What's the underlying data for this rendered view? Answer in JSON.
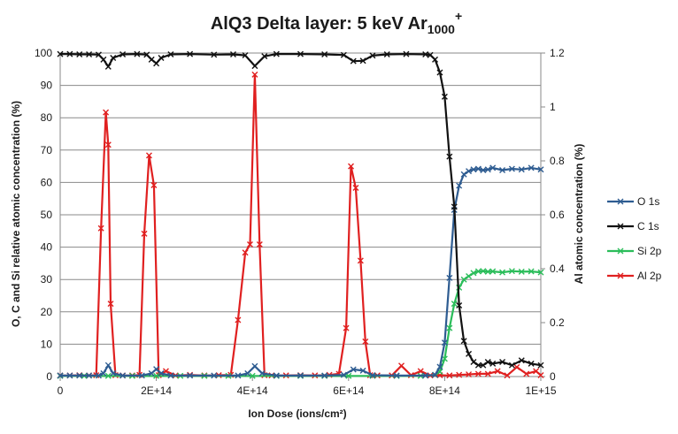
{
  "chart_data": {
    "type": "line",
    "title": {
      "main": "AlQ3 Delta layer: 5 keV Ar",
      "sub": "1000",
      "sup": "+"
    },
    "xlabel": "Ion Dose (ions/cm²)",
    "ylabel": "O, C and Si relative atomic concentration (%)",
    "y2label": "Al atomic concentration (%)",
    "xlim": [
      0,
      1000000000000000.0
    ],
    "ylim": [
      0,
      100
    ],
    "y2lim": [
      0,
      1.2
    ],
    "x_ticks": [
      "0",
      "2E+14",
      "4E+14",
      "6E+14",
      "8E+14",
      "1E+15"
    ],
    "y_ticks": [
      "0",
      "10",
      "20",
      "30",
      "40",
      "50",
      "60",
      "70",
      "80",
      "90",
      "100"
    ],
    "y2_ticks": [
      "0",
      "0.2",
      "0.4",
      "0.6",
      "0.8",
      "1",
      "1.2"
    ],
    "grid": "horizontal",
    "legend_position": "right",
    "series": [
      {
        "name": "O 1s",
        "axis": "left",
        "color": "#2e5c91",
        "x": [
          0,
          20000000000000.0,
          40000000000000.0,
          60000000000000.0,
          80000000000000.0,
          90000000000000.0,
          100000000000000.0,
          110000000000000.0,
          130000000000000.0,
          170000000000000.0,
          190000000000000.0,
          200000000000000.0,
          210000000000000.0,
          230000000000000.0,
          270000000000000.0,
          320000000000000.0,
          370000000000000.0,
          390000000000000.0,
          405000000000000.0,
          420000000000000.0,
          450000000000000.0,
          500000000000000.0,
          550000000000000.0,
          590000000000000.0,
          610000000000000.0,
          630000000000000.0,
          650000000000000.0,
          700000000000000.0,
          760000000000000.0,
          780000000000000.0,
          790000000000000.0,
          800000000000000.0,
          810000000000000.0,
          820000000000000.0,
          830000000000000.0,
          840000000000000.0,
          850000000000000.0,
          860000000000000.0,
          870000000000000.0,
          880000000000000.0,
          890000000000000.0,
          900000000000000.0,
          920000000000000.0,
          940000000000000.0,
          960000000000000.0,
          980000000000000.0,
          1000000000000000.0
        ],
        "values": [
          0.3,
          0.3,
          0.3,
          0.3,
          0.3,
          1.0,
          3.5,
          1.0,
          0.3,
          0.3,
          1.0,
          2.3,
          1.0,
          0.3,
          0.3,
          0.3,
          0.3,
          1.0,
          3.2,
          1.0,
          0.3,
          0.3,
          0.3,
          0.5,
          2.2,
          1.8,
          0.4,
          0.3,
          0.3,
          0.5,
          3.0,
          10.5,
          30.5,
          51.5,
          59.0,
          62.5,
          63.5,
          64.0,
          64.2,
          63.8,
          64.0,
          64.5,
          63.8,
          64.2,
          64.0,
          64.5,
          64.0
        ]
      },
      {
        "name": "C 1s",
        "axis": "left",
        "color": "#111111",
        "x": [
          0,
          20000000000000.0,
          40000000000000.0,
          60000000000000.0,
          80000000000000.0,
          90000000000000.0,
          100000000000000.0,
          110000000000000.0,
          130000000000000.0,
          160000000000000.0,
          180000000000000.0,
          190000000000000.0,
          200000000000000.0,
          210000000000000.0,
          230000000000000.0,
          270000000000000.0,
          320000000000000.0,
          360000000000000.0,
          385000000000000.0,
          405000000000000.0,
          425000000000000.0,
          450000000000000.0,
          500000000000000.0,
          550000000000000.0,
          590000000000000.0,
          610000000000000.0,
          630000000000000.0,
          650000000000000.0,
          680000000000000.0,
          720000000000000.0,
          760000000000000.0,
          770000000000000.0,
          780000000000000.0,
          790000000000000.0,
          800000000000000.0,
          810000000000000.0,
          820000000000000.0,
          830000000000000.0,
          840000000000000.0,
          850000000000000.0,
          860000000000000.0,
          870000000000000.0,
          880000000000000.0,
          890000000000000.0,
          900000000000000.0,
          920000000000000.0,
          940000000000000.0,
          960000000000000.0,
          980000000000000.0,
          1000000000000000.0
        ],
        "values": [
          99.7,
          99.7,
          99.6,
          99.6,
          99.5,
          98.0,
          95.8,
          98.5,
          99.6,
          99.7,
          99.5,
          98.0,
          96.8,
          98.5,
          99.6,
          99.7,
          99.5,
          99.6,
          99.3,
          96.0,
          99.0,
          99.7,
          99.7,
          99.6,
          99.4,
          97.5,
          97.6,
          99.2,
          99.6,
          99.7,
          99.6,
          99.4,
          98.0,
          94.0,
          86.5,
          68.0,
          52.5,
          22.0,
          11.0,
          7.0,
          4.5,
          3.5,
          3.5,
          4.5,
          4.0,
          4.5,
          3.5,
          5.0,
          4.0,
          3.5
        ]
      },
      {
        "name": "Si 2p",
        "axis": "left",
        "color": "#2bbd5a",
        "x": [
          0,
          50000000000000.0,
          100000000000000.0,
          150000000000000.0,
          200000000000000.0,
          250000000000000.0,
          300000000000000.0,
          350000000000000.0,
          400000000000000.0,
          450000000000000.0,
          500000000000000.0,
          550000000000000.0,
          600000000000000.0,
          650000000000000.0,
          700000000000000.0,
          750000000000000.0,
          780000000000000.0,
          790000000000000.0,
          800000000000000.0,
          810000000000000.0,
          820000000000000.0,
          830000000000000.0,
          840000000000000.0,
          850000000000000.0,
          860000000000000.0,
          870000000000000.0,
          880000000000000.0,
          890000000000000.0,
          900000000000000.0,
          920000000000000.0,
          940000000000000.0,
          960000000000000.0,
          980000000000000.0,
          1000000000000000.0
        ],
        "values": [
          0.2,
          0.2,
          0.2,
          0.2,
          0.2,
          0.2,
          0.2,
          0.2,
          0.2,
          0.2,
          0.2,
          0.2,
          0.2,
          0.2,
          0.2,
          0.2,
          0.5,
          1.5,
          5.5,
          15.0,
          22.5,
          27.5,
          30.0,
          31.0,
          32.0,
          32.5,
          32.6,
          32.4,
          32.5,
          32.2,
          32.6,
          32.4,
          32.5,
          32.2
        ]
      },
      {
        "name": "Al 2p",
        "axis": "right",
        "color": "#e02020",
        "x": [
          0,
          20000000000000.0,
          40000000000000.0,
          60000000000000.0,
          75000000000000.0,
          85000000000000.0,
          95000000000000.0,
          100000000000000.0,
          105000000000000.0,
          115000000000000.0,
          130000000000000.0,
          150000000000000.0,
          165000000000000.0,
          175000000000000.0,
          185000000000000.0,
          195000000000000.0,
          205000000000000.0,
          220000000000000.0,
          240000000000000.0,
          270000000000000.0,
          300000000000000.0,
          330000000000000.0,
          355000000000000.0,
          370000000000000.0,
          385000000000000.0,
          395000000000000.0,
          405000000000000.0,
          415000000000000.0,
          425000000000000.0,
          440000000000000.0,
          470000000000000.0,
          500000000000000.0,
          530000000000000.0,
          560000000000000.0,
          580000000000000.0,
          595000000000000.0,
          605000000000000.0,
          615000000000000.0,
          625000000000000.0,
          635000000000000.0,
          645000000000000.0,
          660000000000000.0,
          690000000000000.0,
          710000000000000.0,
          730000000000000.0,
          750000000000000.0,
          770000000000000.0,
          790000000000000.0,
          810000000000000.0,
          830000000000000.0,
          850000000000000.0,
          870000000000000.0,
          890000000000000.0,
          910000000000000.0,
          930000000000000.0,
          950000000000000.0,
          970000000000000.0,
          990000000000000.0,
          1000000000000000.0
        ],
        "values": [
          0.004,
          0.004,
          0.005,
          0.004,
          0.005,
          0.55,
          0.98,
          0.86,
          0.27,
          0.005,
          0.004,
          0.004,
          0.006,
          0.53,
          0.82,
          0.71,
          0.005,
          0.02,
          0.004,
          0.006,
          0.004,
          0.005,
          0.006,
          0.21,
          0.46,
          0.49,
          1.12,
          0.49,
          0.005,
          0.004,
          0.004,
          0.005,
          0.004,
          0.006,
          0.01,
          0.18,
          0.78,
          0.7,
          0.43,
          0.13,
          0.005,
          0.004,
          0.004,
          0.04,
          0.005,
          0.02,
          0.004,
          0.005,
          0.004,
          0.006,
          0.008,
          0.01,
          0.01,
          0.02,
          0.004,
          0.035,
          0.01,
          0.02,
          0.005
        ]
      }
    ]
  }
}
